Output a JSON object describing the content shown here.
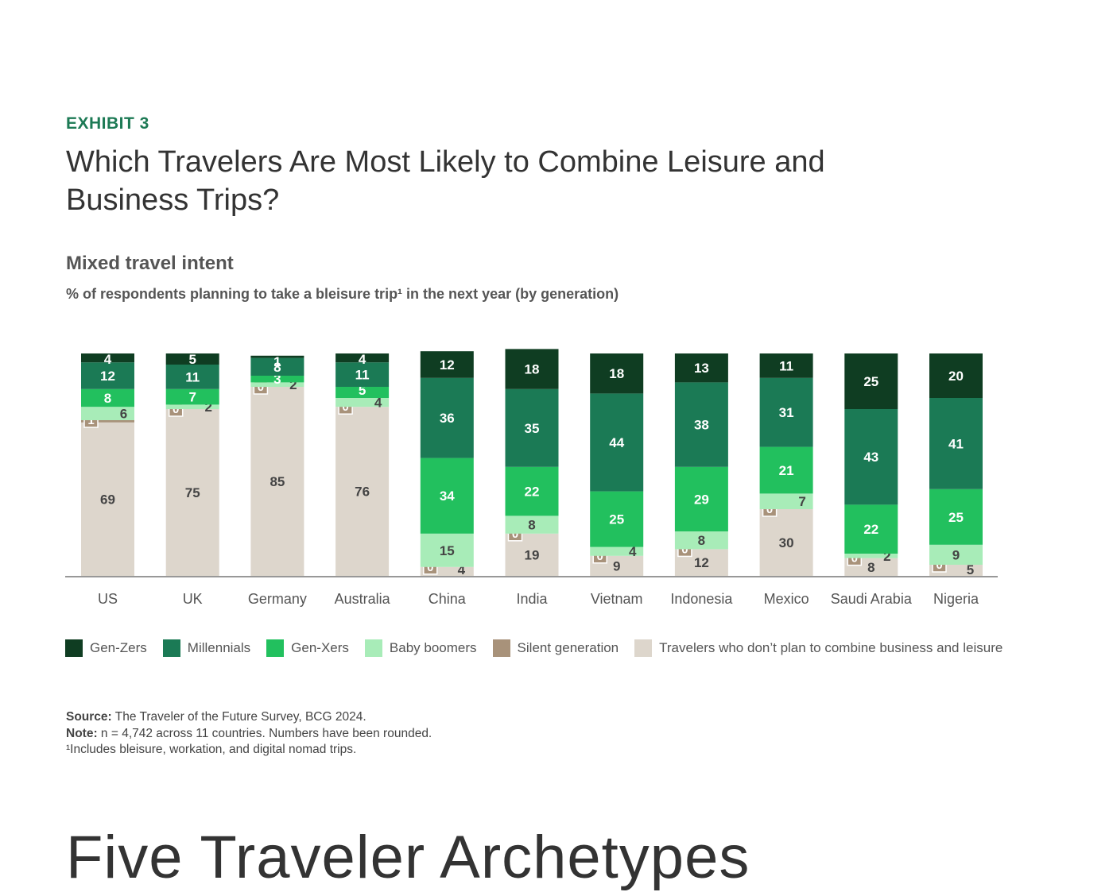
{
  "exhibit_label": "EXHIBIT 3",
  "title": "Which Travelers Are Most Likely to Combine Leisure and Business Trips?",
  "subtitle": "Mixed travel intent",
  "description": "% of respondents planning to take a bleisure trip¹ in the next year (by generation)",
  "colors": {
    "Gen-Zers": "#0f3d22",
    "Millennials": "#1b7a55",
    "Gen-Xers": "#22c05e",
    "Baby boomers": "#a8ecb8",
    "Silent generation": "#a8927a",
    "Travelers who don’t plan to combine business and leisure": "#ddd6cc"
  },
  "chart_data": {
    "type": "bar",
    "stacked": true,
    "categories": [
      "US",
      "UK",
      "Germany",
      "Australia",
      "China",
      "India",
      "Vietnam",
      "Indonesia",
      "Mexico",
      "Saudi Arabia",
      "Nigeria"
    ],
    "series": [
      {
        "name": "Gen-Zers",
        "values": [
          4,
          5,
          1,
          4,
          12,
          18,
          18,
          13,
          11,
          25,
          20
        ]
      },
      {
        "name": "Millennials",
        "values": [
          12,
          11,
          8,
          11,
          36,
          35,
          44,
          38,
          31,
          43,
          41
        ]
      },
      {
        "name": "Gen-Xers",
        "values": [
          8,
          7,
          3,
          5,
          34,
          22,
          25,
          29,
          21,
          22,
          25
        ]
      },
      {
        "name": "Baby boomers",
        "values": [
          6,
          2,
          2,
          4,
          15,
          8,
          4,
          8,
          7,
          2,
          9
        ]
      },
      {
        "name": "Silent generation",
        "values": [
          1,
          0,
          0,
          0,
          0,
          0,
          0,
          0,
          0,
          0,
          0
        ]
      },
      {
        "name": "Travelers who don’t plan to combine business and leisure",
        "values": [
          69,
          75,
          85,
          76,
          4,
          19,
          9,
          12,
          30,
          8,
          5
        ]
      }
    ],
    "ylim": [
      0,
      100
    ]
  },
  "legend": [
    "Gen-Zers",
    "Millennials",
    "Gen-Xers",
    "Baby boomers",
    "Silent generation",
    "Travelers who don’t plan to combine business and leisure"
  ],
  "source_label": "Source:",
  "source_text": "The Traveler of the Future Survey, BCG 2024.",
  "note_label": "Note:",
  "note_text": "n = 4,742 across 11 countries. Numbers have been rounded.",
  "footnote": "¹Includes bleisure, workation, and digital nomad trips.",
  "next_heading": "Five Traveler Archetypes"
}
